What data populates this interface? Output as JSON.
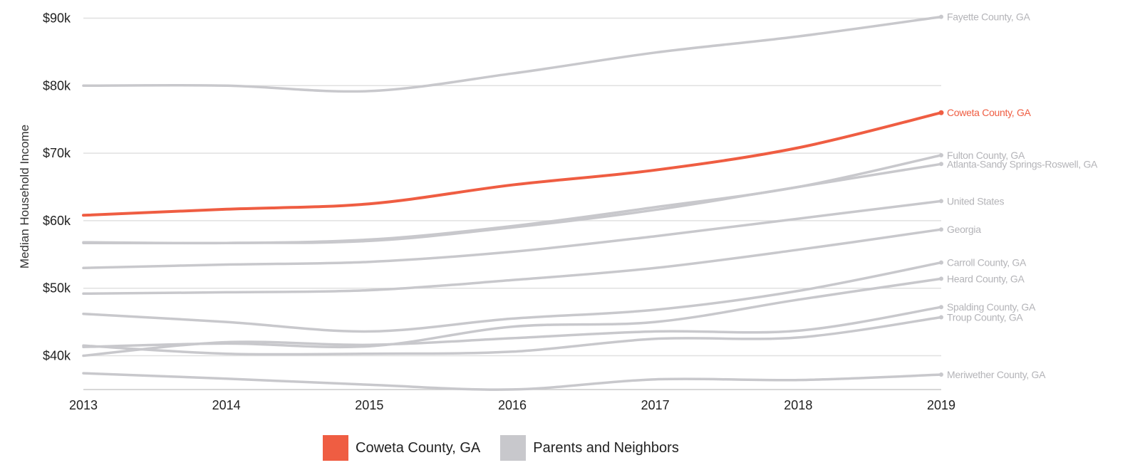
{
  "chart_data": {
    "type": "line",
    "title": "",
    "xlabel": "",
    "ylabel": "Median Household Income",
    "x": [
      2013,
      2014,
      2015,
      2016,
      2017,
      2018,
      2019
    ],
    "x_tick_labels": [
      "2013",
      "2014",
      "2015",
      "2016",
      "2017",
      "2018",
      "2019"
    ],
    "y_ticks": [
      40000,
      50000,
      60000,
      70000,
      80000,
      90000
    ],
    "y_tick_labels": [
      "$40k",
      "$50k",
      "$60k",
      "$70k",
      "$80k",
      "$90k"
    ],
    "ylim": [
      35000,
      91000
    ],
    "grid": true,
    "legend_position": "bottom",
    "colors": {
      "highlight": "#ef5d42",
      "neighbors": "#c8c8cc",
      "grid": "#e0e0e0",
      "axis": "#cccccc"
    },
    "legend": [
      {
        "label": "Coweta County, GA",
        "color": "#ef5d42"
      },
      {
        "label": "Parents and Neighbors",
        "color": "#c8c8cc"
      }
    ],
    "series": [
      {
        "name": "Fayette County, GA",
        "group": "neighbors",
        "values": [
          80000,
          80000,
          79200,
          81800,
          84900,
          87300,
          90200
        ]
      },
      {
        "name": "Fulton County, GA",
        "group": "neighbors",
        "values": [
          56800,
          56700,
          57200,
          59200,
          62000,
          65000,
          69700
        ]
      },
      {
        "name": "Atlanta-Sandy Springs-Roswell, GA",
        "group": "neighbors",
        "values": [
          56700,
          56700,
          57000,
          59000,
          61600,
          65000,
          68400
        ]
      },
      {
        "name": "United States",
        "group": "neighbors",
        "values": [
          53000,
          53500,
          53900,
          55400,
          57700,
          60300,
          62900
        ]
      },
      {
        "name": "Georgia",
        "group": "neighbors",
        "values": [
          49200,
          49400,
          49700,
          51200,
          53000,
          55700,
          58700
        ]
      },
      {
        "name": "Carroll County, GA",
        "group": "neighbors",
        "values": [
          46200,
          45000,
          43600,
          45500,
          46800,
          49600,
          53800
        ]
      },
      {
        "name": "Heard County, GA",
        "group": "neighbors",
        "values": [
          41300,
          41800,
          41400,
          44300,
          45000,
          48300,
          51400
        ]
      },
      {
        "name": "Spalding County, GA",
        "group": "neighbors",
        "values": [
          40000,
          42000,
          41600,
          42600,
          43600,
          43700,
          47200
        ]
      },
      {
        "name": "Troup County, GA",
        "group": "neighbors",
        "values": [
          41500,
          40300,
          40300,
          40600,
          42500,
          42700,
          45700
        ]
      },
      {
        "name": "Meriwether County, GA",
        "group": "neighbors",
        "values": [
          37400,
          36600,
          35700,
          35000,
          36500,
          36400,
          37200
        ]
      },
      {
        "name": "Coweta County, GA",
        "group": "highlight",
        "values": [
          60800,
          61700,
          62500,
          65300,
          67500,
          70800,
          76000
        ]
      }
    ]
  }
}
